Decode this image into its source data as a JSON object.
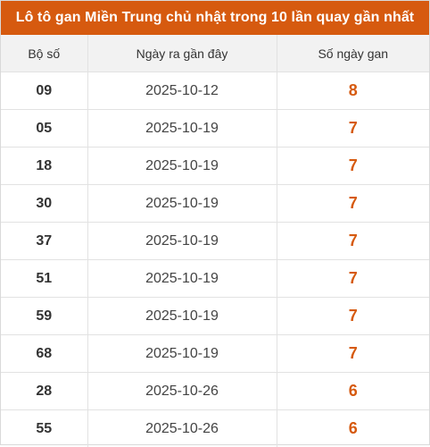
{
  "title": "Lô tô gan Miền Trung chủ nhật trong 10 lần quay gần nhất",
  "columns": [
    "Bộ số",
    "Ngày ra gần đây",
    "Số ngày gan"
  ],
  "colors": {
    "header_bg": "#d65a0f",
    "gan_value": "#d65a0f"
  },
  "rows": [
    {
      "number": "09",
      "date": "2025-10-12",
      "gan": "8"
    },
    {
      "number": "05",
      "date": "2025-10-19",
      "gan": "7"
    },
    {
      "number": "18",
      "date": "2025-10-19",
      "gan": "7"
    },
    {
      "number": "30",
      "date": "2025-10-19",
      "gan": "7"
    },
    {
      "number": "37",
      "date": "2025-10-19",
      "gan": "7"
    },
    {
      "number": "51",
      "date": "2025-10-19",
      "gan": "7"
    },
    {
      "number": "59",
      "date": "2025-10-19",
      "gan": "7"
    },
    {
      "number": "68",
      "date": "2025-10-19",
      "gan": "7"
    },
    {
      "number": "28",
      "date": "2025-10-26",
      "gan": "6"
    },
    {
      "number": "55",
      "date": "2025-10-26",
      "gan": "6"
    }
  ]
}
